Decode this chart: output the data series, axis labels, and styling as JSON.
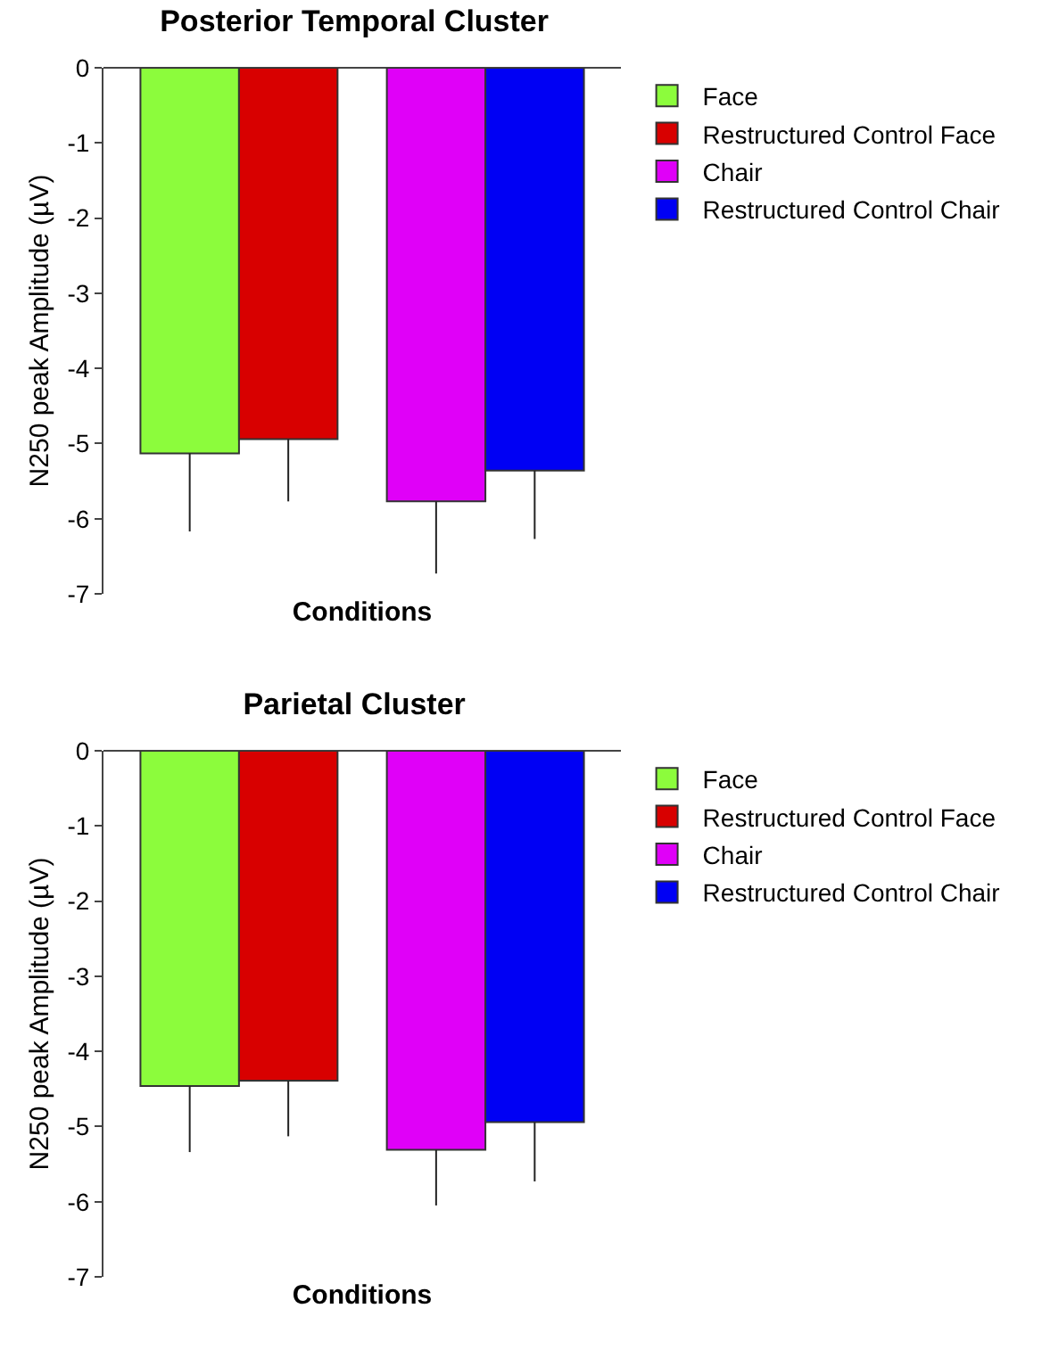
{
  "chart_data": [
    {
      "type": "bar",
      "title": "Posterior Temporal Cluster",
      "xlabel": "Conditions",
      "ylabel": "N250 peak Amplitude (µV)",
      "categories": [
        null,
        null
      ],
      "series": [
        {
          "name": "Face",
          "color": "#8cfc3c",
          "values": [
            -5.13,
            null
          ],
          "errors": [
            [
              -6.17,
              -5.13
            ],
            null
          ]
        },
        {
          "name": "Restructured Control Face",
          "color": "#d80000",
          "values": [
            -4.94,
            null
          ],
          "errors": [
            [
              -5.77,
              -4.94
            ],
            null
          ]
        },
        {
          "name": "Chair",
          "color": "#e000f8",
          "values": [
            null,
            -5.77
          ],
          "errors": [
            null,
            [
              -6.73,
              -5.77
            ]
          ]
        },
        {
          "name": "Restructured Control Chair",
          "color": "#0000f4",
          "values": [
            null,
            -5.36
          ],
          "errors": [
            null,
            [
              -6.27,
              -5.36
            ]
          ]
        }
      ],
      "ylim": [
        -7,
        0
      ],
      "yticks": [
        -7,
        -6,
        -5,
        -4,
        -3,
        -2,
        -1,
        0
      ],
      "grid": false,
      "legend": "top right"
    },
    {
      "type": "bar",
      "title": "Parietal Cluster",
      "xlabel": "Conditions",
      "ylabel": "N250 peak Amplitude (µV)",
      "categories": [
        null,
        null
      ],
      "series": [
        {
          "name": "Face",
          "color": "#8cfc3c",
          "values": [
            -4.46,
            null
          ],
          "errors": [
            [
              -5.34,
              -4.46
            ],
            null
          ]
        },
        {
          "name": "Restructured Control Face",
          "color": "#d80000",
          "values": [
            -4.39,
            null
          ],
          "errors": [
            [
              -5.13,
              -4.39
            ],
            null
          ]
        },
        {
          "name": "Chair",
          "color": "#e000f8",
          "values": [
            null,
            -5.31
          ],
          "errors": [
            null,
            [
              -6.05,
              -5.31
            ]
          ]
        },
        {
          "name": "Restructured Control Chair",
          "color": "#0000f4",
          "values": [
            null,
            -4.94
          ],
          "errors": [
            null,
            [
              -5.73,
              -4.94
            ]
          ]
        }
      ],
      "ylim": [
        -7,
        0
      ],
      "yticks": [
        -7,
        -6,
        -5,
        -4,
        -3,
        -2,
        -1,
        0
      ],
      "grid": false,
      "legend": "top right"
    }
  ]
}
